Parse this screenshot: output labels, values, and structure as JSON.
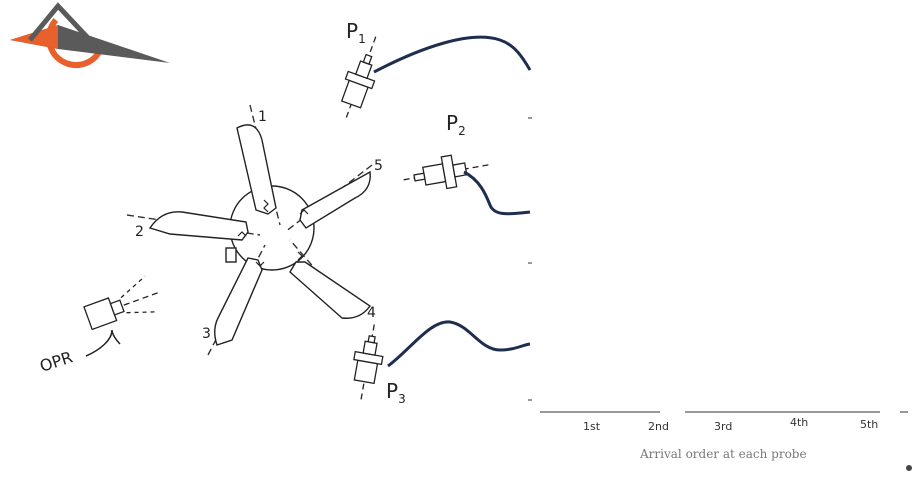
{
  "logo": {
    "name": "brand-logo",
    "colors": {
      "orange": "#e8602c",
      "gray": "#5a5a5a"
    }
  },
  "rotor": {
    "blades": [
      {
        "number": "1"
      },
      {
        "number": "5"
      },
      {
        "number": "4"
      },
      {
        "number": "3"
      },
      {
        "number": "2"
      }
    ]
  },
  "probes": {
    "p1": {
      "letter": "P",
      "sub": "1"
    },
    "p2": {
      "letter": "P",
      "sub": "2"
    },
    "p3": {
      "letter": "P",
      "sub": "3"
    },
    "opr": {
      "label": "OPR"
    }
  },
  "colors": {
    "signal": "#1f2d4f",
    "ink": "#222222"
  },
  "axis": {
    "ticks": [
      "1st",
      "2nd",
      "3rd",
      "4th",
      "5th"
    ],
    "caption": "Arrival order at each probe"
  }
}
